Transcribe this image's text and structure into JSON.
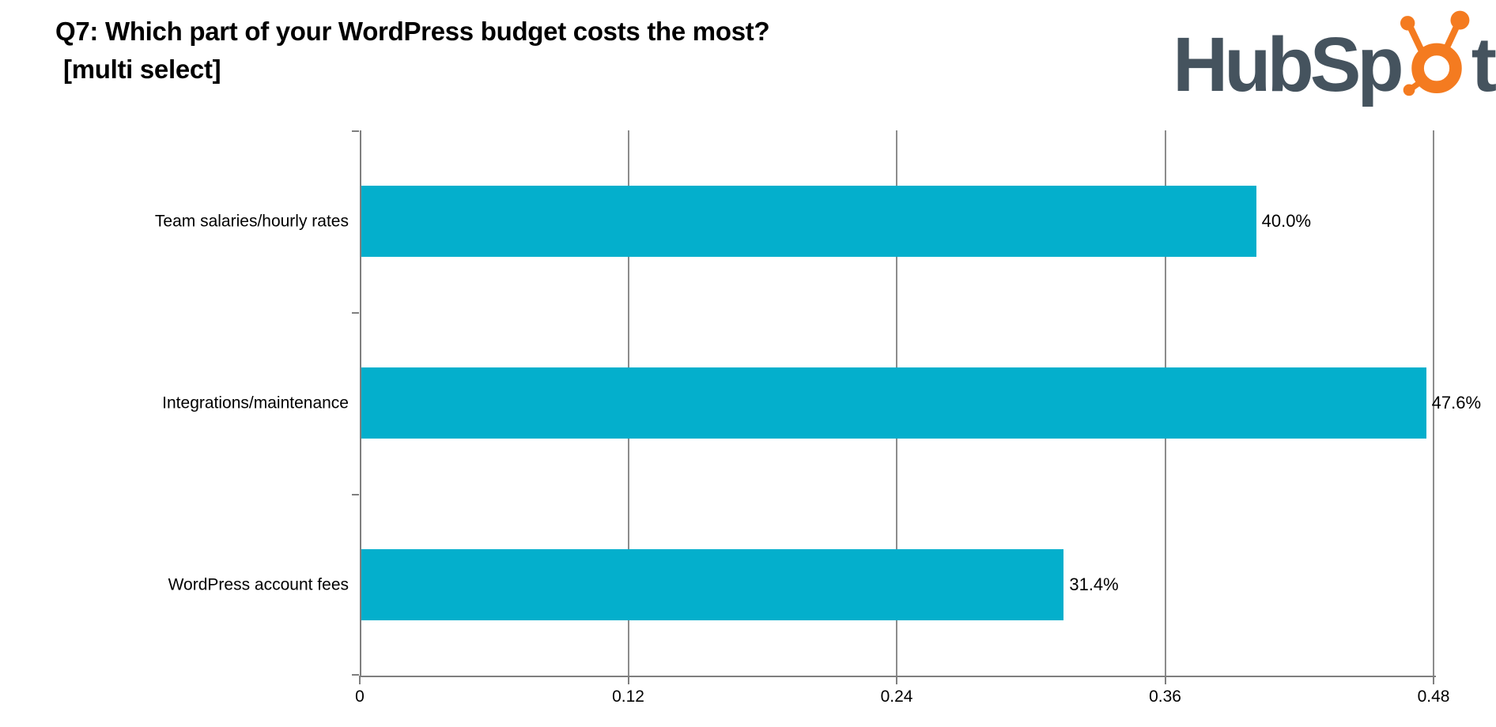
{
  "title": {
    "line1": "Q7: Which part of your WordPress budget costs the most?",
    "line2": "[multi select]"
  },
  "logo": {
    "name": "HubSpot",
    "text_pre": "HubSp",
    "text_post": "t",
    "dark_color": "#45535E",
    "orange_color": "#F47B20"
  },
  "chart_data": {
    "type": "bar",
    "orientation": "horizontal",
    "title": "Q7: Which part of your WordPress budget costs the most? [multi select]",
    "categories": [
      "Team salaries/hourly rates",
      "Integrations/maintenance",
      "WordPress account fees"
    ],
    "values": [
      0.4,
      0.476,
      0.314
    ],
    "value_labels": [
      "40.0%",
      "47.6%",
      "31.4%"
    ],
    "x_ticks": [
      0,
      0.12,
      0.24,
      0.36,
      0.48
    ],
    "x_tick_labels": [
      "0",
      "0.12",
      "0.24",
      "0.36",
      "0.48"
    ],
    "xlim": [
      0,
      0.48
    ],
    "grid": true,
    "legend": false,
    "bar_color": "#04AFCC",
    "axis_color": "#7F7F7F",
    "gridline_color": "#8C8C8C",
    "xlabel": "",
    "ylabel": ""
  }
}
